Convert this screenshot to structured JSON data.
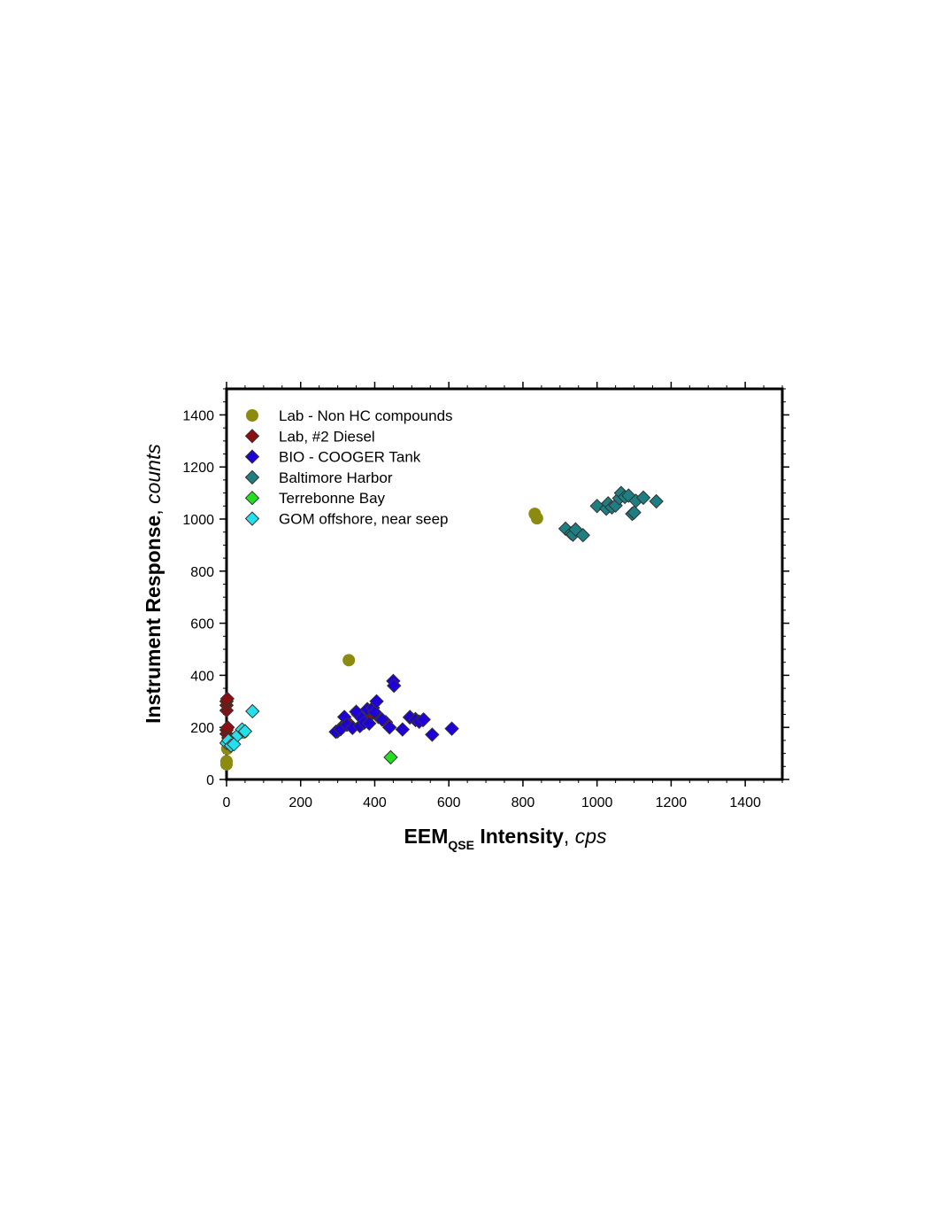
{
  "chart_data": {
    "type": "scatter",
    "title": "",
    "xlabel": {
      "main": "EEM",
      "subscript": "QSE",
      "rest": " Intensity",
      "sep": ", ",
      "unit": "cps"
    },
    "ylabel": {
      "main": "Instrument Response",
      "sep": ", ",
      "unit": "counts"
    },
    "xlim": [
      0,
      1500
    ],
    "ylim": [
      0,
      1500
    ],
    "xticks": [
      0,
      200,
      400,
      600,
      800,
      1000,
      1200,
      1400
    ],
    "yticks": [
      0,
      200,
      400,
      600,
      800,
      1000,
      1200,
      1400
    ],
    "minor_tick_step": 50,
    "grid": false,
    "legend_position": "top-left",
    "series": [
      {
        "name": "Lab - Non HC compounds",
        "marker": "circle",
        "color": "#8b8b10",
        "points": [
          [
            0,
            70
          ],
          [
            0,
            58
          ],
          [
            2,
            118
          ],
          [
            45,
            180
          ],
          [
            330,
            458
          ],
          [
            832,
            1020
          ],
          [
            838,
            1003
          ]
        ]
      },
      {
        "name": "Lab, #2 Diesel",
        "marker": "diamond",
        "color": "#8b0f10",
        "points": [
          [
            0,
            265
          ],
          [
            0,
            285
          ],
          [
            0,
            300
          ],
          [
            2,
            310
          ],
          [
            0,
            190
          ],
          [
            0,
            175
          ],
          [
            3,
            200
          ],
          [
            5,
            160
          ],
          [
            300,
            185
          ],
          [
            310,
            200
          ],
          [
            330,
            215
          ],
          [
            355,
            250
          ],
          [
            380,
            235
          ],
          [
            410,
            240
          ],
          [
            430,
            220
          ],
          [
            495,
            240
          ],
          [
            510,
            232
          ],
          [
            530,
            228
          ]
        ]
      },
      {
        "name": "BIO - COOGER Tank",
        "marker": "diamond",
        "color": "#2000d8",
        "points": [
          [
            295,
            183
          ],
          [
            308,
            193
          ],
          [
            318,
            240
          ],
          [
            325,
            210
          ],
          [
            340,
            198
          ],
          [
            350,
            260
          ],
          [
            360,
            205
          ],
          [
            365,
            235
          ],
          [
            372,
            218
          ],
          [
            380,
            270
          ],
          [
            385,
            215
          ],
          [
            395,
            275
          ],
          [
            400,
            258
          ],
          [
            405,
            300
          ],
          [
            420,
            230
          ],
          [
            440,
            200
          ],
          [
            450,
            378
          ],
          [
            452,
            360
          ],
          [
            475,
            192
          ],
          [
            495,
            238
          ],
          [
            510,
            228
          ],
          [
            520,
            222
          ],
          [
            532,
            230
          ],
          [
            555,
            172
          ],
          [
            608,
            195
          ]
        ]
      },
      {
        "name": "Baltimore Harbor",
        "marker": "diamond",
        "color": "#1e7f82",
        "points": [
          [
            915,
            963
          ],
          [
            930,
            945
          ],
          [
            935,
            940
          ],
          [
            942,
            960
          ],
          [
            962,
            938
          ],
          [
            1000,
            1050
          ],
          [
            1025,
            1040
          ],
          [
            1030,
            1060
          ],
          [
            1040,
            1045
          ],
          [
            1050,
            1052
          ],
          [
            1060,
            1080
          ],
          [
            1065,
            1100
          ],
          [
            1075,
            1085
          ],
          [
            1085,
            1090
          ],
          [
            1095,
            1020
          ],
          [
            1100,
            1025
          ],
          [
            1105,
            1070
          ],
          [
            1125,
            1082
          ],
          [
            1160,
            1068
          ]
        ]
      },
      {
        "name": "Terrebonne Bay",
        "marker": "diamond",
        "color": "#22e01e",
        "points": [
          [
            443,
            85
          ]
        ]
      },
      {
        "name": "GOM offshore, near seep",
        "marker": "diamond",
        "color": "#22e0ec",
        "points": [
          [
            0,
            140
          ],
          [
            5,
            150
          ],
          [
            12,
            130
          ],
          [
            20,
            135
          ],
          [
            30,
            170
          ],
          [
            42,
            192
          ],
          [
            50,
            185
          ],
          [
            70,
            262
          ]
        ]
      }
    ]
  }
}
